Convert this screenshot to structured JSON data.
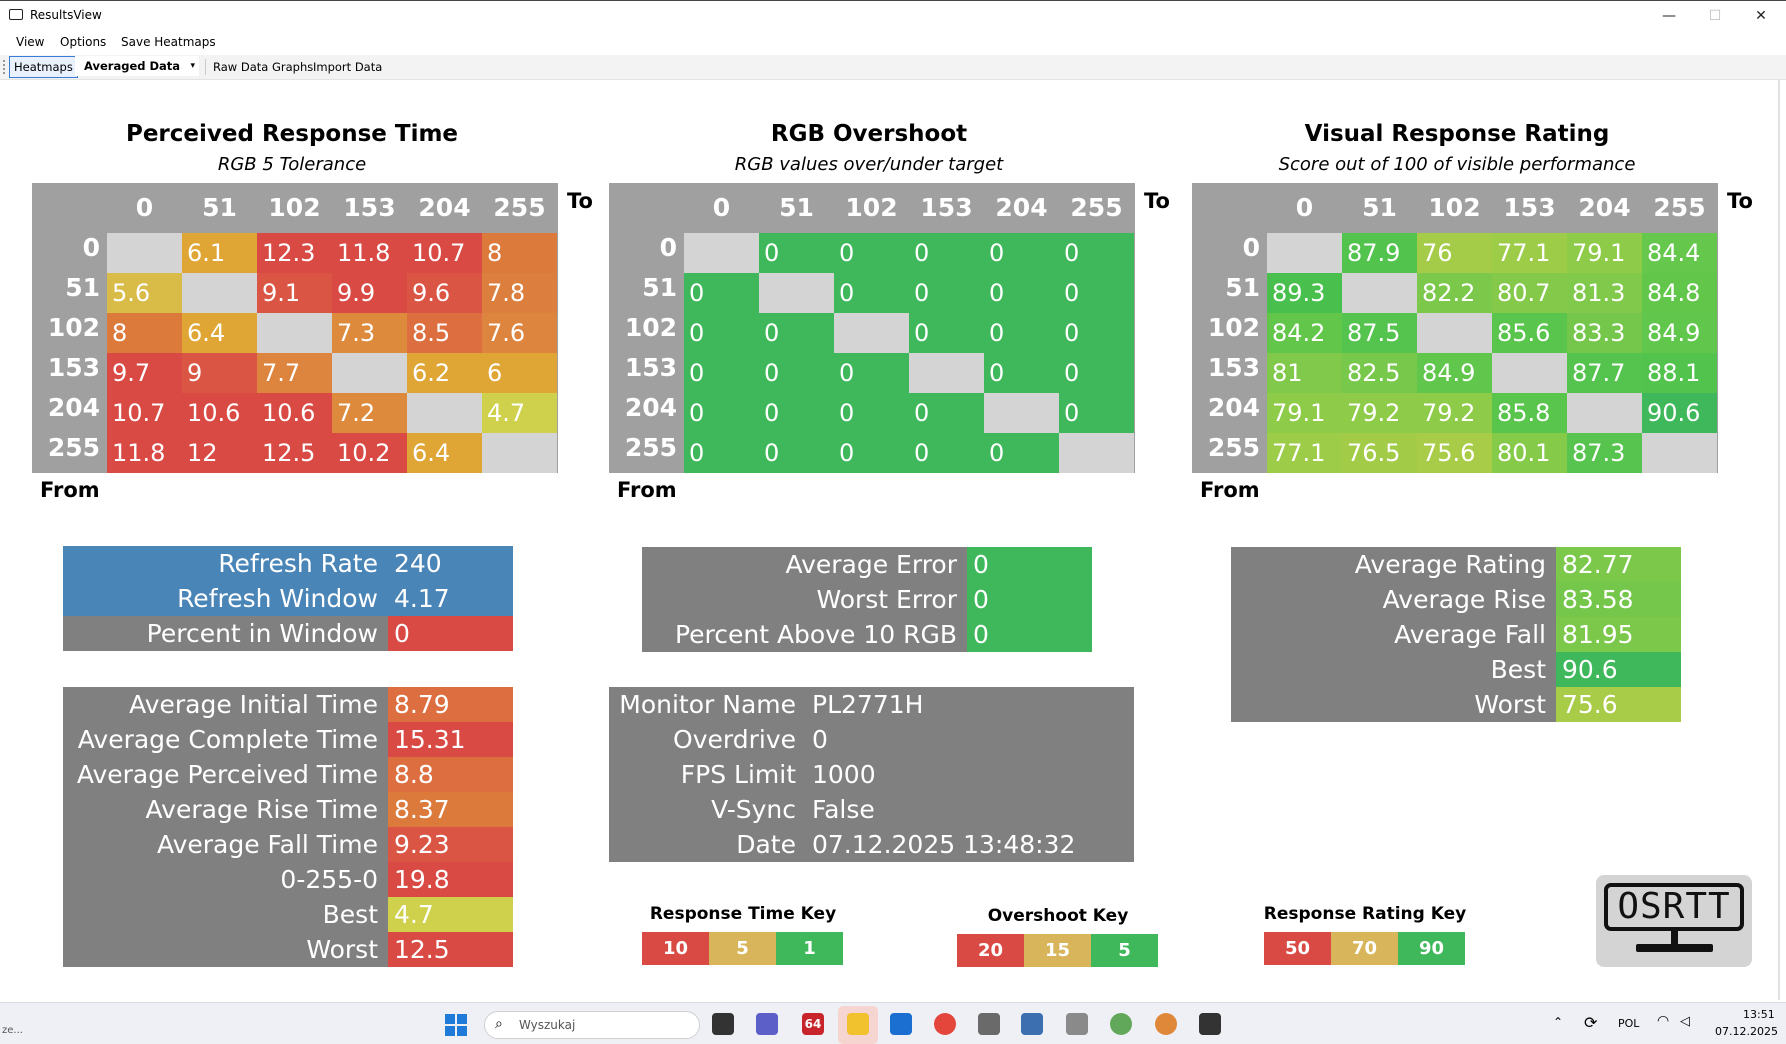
{
  "window": {
    "title": "ResultsView",
    "min": "—",
    "max": "☐",
    "close": "✕"
  },
  "menu": [
    "View",
    "Options",
    "Save Heatmaps"
  ],
  "toolbar": {
    "heatmaps": "Heatmaps",
    "averaged": "Averaged Data",
    "dropdown_arrow": "▾",
    "raw": "Raw Data Graphs",
    "import": "Import Data"
  },
  "heatmaps": [
    {
      "title": "Perceived Response Time",
      "subtitle": "RGB 5 Tolerance",
      "to": "To",
      "from": "From",
      "cols": [
        "0",
        "51",
        "102",
        "153",
        "204",
        "255"
      ],
      "rows": [
        "0",
        "51",
        "102",
        "153",
        "204",
        "255"
      ],
      "cells": [
        [
          "",
          "6.1",
          "12.3",
          "11.8",
          "10.7",
          "8"
        ],
        [
          "5.6",
          "",
          "9.1",
          "9.9",
          "9.6",
          "7.8"
        ],
        [
          "8",
          "6.4",
          "",
          "7.3",
          "8.5",
          "7.6"
        ],
        [
          "9.7",
          "9",
          "7.7",
          "",
          "6.2",
          "6"
        ],
        [
          "10.7",
          "10.6",
          "10.6",
          "7.2",
          "",
          "4.7"
        ],
        [
          "11.8",
          "12",
          "12.5",
          "10.2",
          "6.4",
          ""
        ]
      ],
      "colors": [
        [
          "#d4d4d4",
          "#dfa535",
          "#d94a44",
          "#d94a44",
          "#d94a44",
          "#dc7a3c"
        ],
        [
          "#d9bb47",
          "#d4d4d4",
          "#da5544",
          "#d94a44",
          "#da5544",
          "#dc7f3e"
        ],
        [
          "#dc7a3c",
          "#dfa535",
          "#d4d4d4",
          "#dd8a3d",
          "#dc6e40",
          "#dd853e"
        ],
        [
          "#d94a44",
          "#da5544",
          "#dd853e",
          "#d4d4d4",
          "#dfa535",
          "#dfa535"
        ],
        [
          "#d94a44",
          "#d94a44",
          "#d94a44",
          "#dd8a3d",
          "#d4d4d4",
          "#cfd14c"
        ],
        [
          "#d94a44",
          "#d94a44",
          "#d94a44",
          "#d94a44",
          "#dfa535",
          "#d4d4d4"
        ]
      ]
    },
    {
      "title": "RGB Overshoot",
      "subtitle": "RGB values over/under target",
      "to": "To",
      "from": "From",
      "cols": [
        "0",
        "51",
        "102",
        "153",
        "204",
        "255"
      ],
      "rows": [
        "0",
        "51",
        "102",
        "153",
        "204",
        "255"
      ],
      "cells": [
        [
          "",
          "0",
          "0",
          "0",
          "0",
          "0"
        ],
        [
          "0",
          "",
          "0",
          "0",
          "0",
          "0"
        ],
        [
          "0",
          "0",
          "",
          "0",
          "0",
          "0"
        ],
        [
          "0",
          "0",
          "0",
          "",
          "0",
          "0"
        ],
        [
          "0",
          "0",
          "0",
          "0",
          "",
          "0"
        ],
        [
          "0",
          "0",
          "0",
          "0",
          "0",
          ""
        ]
      ],
      "colors": "diag-green"
    },
    {
      "title": "Visual Response Rating",
      "subtitle": "Score out of 100 of visible performance",
      "to": "To",
      "from": "From",
      "cols": [
        "0",
        "51",
        "102",
        "153",
        "204",
        "255"
      ],
      "rows": [
        "0",
        "51",
        "102",
        "153",
        "204",
        "255"
      ],
      "cells": [
        [
          "",
          "87.9",
          "76",
          "77.1",
          "79.1",
          "84.4"
        ],
        [
          "89.3",
          "",
          "82.2",
          "80.7",
          "81.3",
          "84.8"
        ],
        [
          "84.2",
          "87.5",
          "",
          "85.6",
          "83.3",
          "84.9"
        ],
        [
          "81",
          "82.5",
          "84.9",
          "",
          "87.7",
          "88.1"
        ],
        [
          "79.1",
          "79.2",
          "79.2",
          "85.8",
          "",
          "90.6"
        ],
        [
          "77.1",
          "76.5",
          "75.6",
          "80.1",
          "87.3",
          ""
        ]
      ],
      "colors": [
        [
          "#d4d4d4",
          "#52c44e",
          "#a5cc48",
          "#9dcc48",
          "#8ecb48",
          "#65c74b"
        ],
        [
          "#49c04e",
          "#d4d4d4",
          "#7bc84b",
          "#84c94a",
          "#80c94a",
          "#62c64b"
        ],
        [
          "#62c64b",
          "#55c44e",
          "#d4d4d4",
          "#5ac54d",
          "#74c74b",
          "#60c64c"
        ],
        [
          "#80c94a",
          "#77c84b",
          "#60c64c",
          "#d4d4d4",
          "#55c44e",
          "#52c44e"
        ],
        [
          "#8ecb48",
          "#8dcb48",
          "#8dcb48",
          "#5ac54d",
          "#d4d4d4",
          "#3eb85a"
        ],
        [
          "#9dcc48",
          "#a2cc48",
          "#a9cc48",
          "#86ca49",
          "#56c44e",
          "#d4d4d4"
        ]
      ]
    }
  ],
  "stats_refresh": [
    {
      "k": "Refresh Rate",
      "v": "240",
      "kc": "#4a85b7",
      "vc": "#4a85b7"
    },
    {
      "k": "Refresh Window",
      "v": "4.17",
      "kc": "#4a85b7",
      "vc": "#4a85b7"
    },
    {
      "k": "Percent in Window",
      "v": "0",
      "kc": "#808080",
      "vc": "#d94a44"
    }
  ],
  "stats_times": [
    {
      "k": "Average Initial Time",
      "v": "8.79",
      "vc": "#dc6e40"
    },
    {
      "k": "Average Complete Time",
      "v": "15.31",
      "vc": "#d94a44"
    },
    {
      "k": "Average Perceived Time",
      "v": "8.8",
      "vc": "#dc6e40"
    },
    {
      "k": "Average Rise Time",
      "v": "8.37",
      "vc": "#dc7a3c"
    },
    {
      "k": "Average Fall Time",
      "v": "9.23",
      "vc": "#da5544"
    },
    {
      "k": "0-255-0",
      "v": "19.8",
      "vc": "#d94a44"
    },
    {
      "k": "Best",
      "v": "4.7",
      "vc": "#cfd14c"
    },
    {
      "k": "Worst",
      "v": "12.5",
      "vc": "#d94a44"
    }
  ],
  "stats_error": [
    {
      "k": "Average Error",
      "v": "0"
    },
    {
      "k": "Worst Error",
      "v": "0"
    },
    {
      "k": "Percent Above 10 RGB",
      "v": "0"
    }
  ],
  "monitor": [
    {
      "k": "Monitor Name",
      "v": "PL2771H"
    },
    {
      "k": "Overdrive",
      "v": "0"
    },
    {
      "k": "FPS Limit",
      "v": "1000"
    },
    {
      "k": "V-Sync",
      "v": "False"
    },
    {
      "k": "Date",
      "v": "07.12.2025 13:48:32"
    }
  ],
  "stats_rating": [
    {
      "k": "Average Rating",
      "v": "82.77",
      "vc": "#7bc84b"
    },
    {
      "k": "Average Rise",
      "v": "83.58",
      "vc": "#74c74b"
    },
    {
      "k": "Average Fall",
      "v": "81.95",
      "vc": "#7bc84b"
    },
    {
      "k": "Best",
      "v": "90.6",
      "vc": "#3eb85a"
    },
    {
      "k": "Worst",
      "v": "75.6",
      "vc": "#a9cc48"
    }
  ],
  "keys": [
    {
      "title": "Response Time Key",
      "vals": [
        "10",
        "5",
        "1"
      ]
    },
    {
      "title": "Overshoot Key",
      "vals": [
        "20",
        "15",
        "5"
      ]
    },
    {
      "title": "Response Rating Key",
      "vals": [
        "50",
        "70",
        "90"
      ]
    }
  ],
  "colors": {
    "red": "#d94a44",
    "yellow": "#d8b55a",
    "green": "#3eb85a",
    "gray": "#808080",
    "blue": "#4a85b7",
    "diag": "#d4d4d4"
  },
  "logo": "OSRTT",
  "taskbar": {
    "search_placeholder": "Wyszukaj",
    "lang": "POL",
    "time": "13:51",
    "date": "07.12.2025",
    "left_text": "ze...",
    "badge": "64"
  }
}
